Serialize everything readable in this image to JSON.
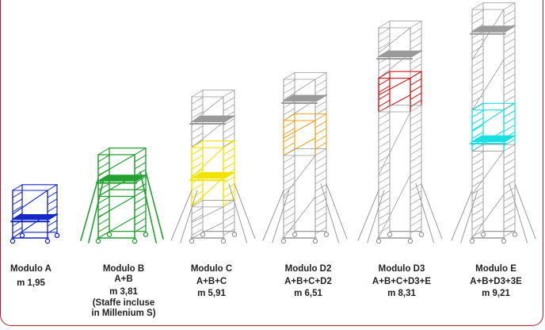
{
  "colors": {
    "frame": "#b0182e",
    "scaffold_grey": "#9a9a9a",
    "module_a": "#1428c8",
    "module_b": "#22a030",
    "module_c": "#f2e400",
    "module_d2": "#f0a020",
    "module_d3": "#d01818",
    "module_e": "#18e0e0"
  },
  "modules": [
    {
      "title": "Modulo A",
      "combo": "",
      "height": "m 1,95",
      "note": ""
    },
    {
      "title": "Modulo B",
      "combo": "A+B",
      "height": "m 3,81",
      "note": "(Staffe incluse in Millenium S)"
    },
    {
      "title": "Modulo C",
      "combo": "A+B+C",
      "height": "m 5,91",
      "note": ""
    },
    {
      "title": "Modulo D2",
      "combo": "A+B+C+D2",
      "height": "m 6,51",
      "note": ""
    },
    {
      "title": "Modulo D3",
      "combo": "A+B+C+D3+E",
      "height": "m 8,31",
      "note": ""
    },
    {
      "title": "Modulo E",
      "combo": "A+B+D3+3E",
      "height": "m 9,21",
      "note": ""
    }
  ]
}
